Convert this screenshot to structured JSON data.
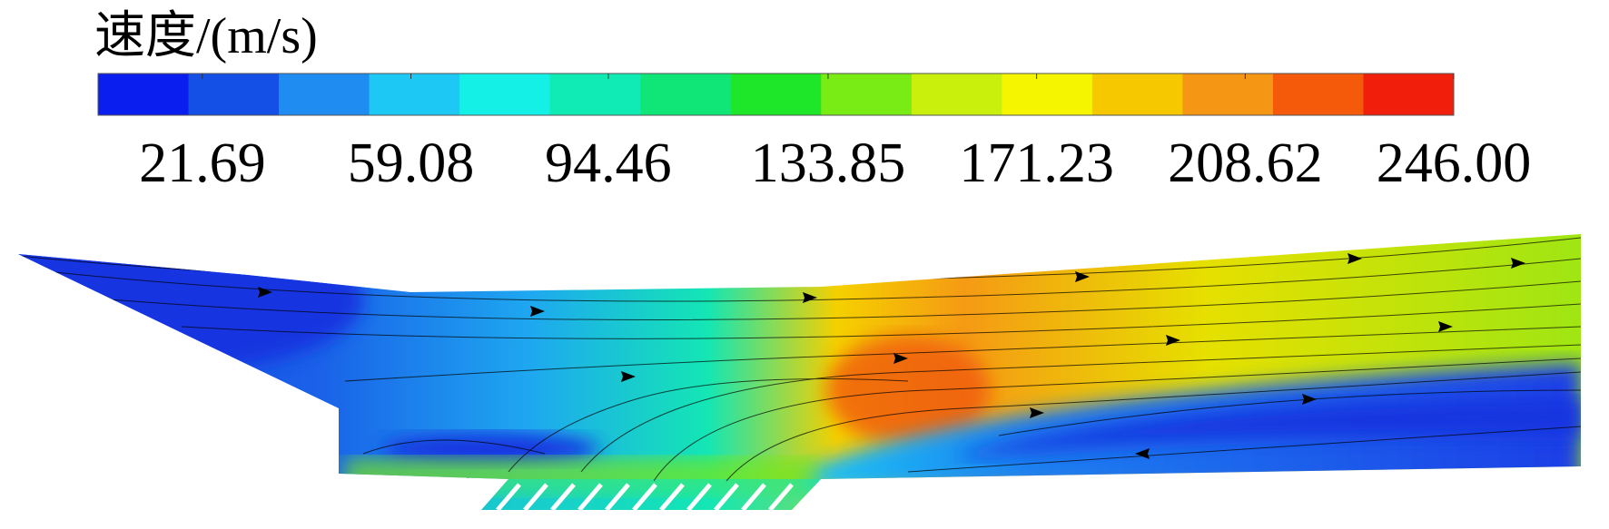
{
  "chart_data": {
    "type": "colorbar",
    "title": "速度/(m/s)",
    "clim": [
      3,
      246
    ],
    "ticks": [
      21.69,
      59.08,
      94.46,
      133.85,
      171.23,
      208.62,
      {
        "value": 246,
        "label": "246.00"
      }
    ],
    "colors": [
      "#0a1ef0",
      "#1450e6",
      "#1e8cf0",
      "#1ec8f5",
      "#14f0e6",
      "#10eab4",
      "#10e678",
      "#1ee628",
      "#78ec14",
      "#c8f00c",
      "#f5f500",
      "#f5c800",
      "#f59614",
      "#f55a0a",
      "#f01e0a"
    ]
  }
}
